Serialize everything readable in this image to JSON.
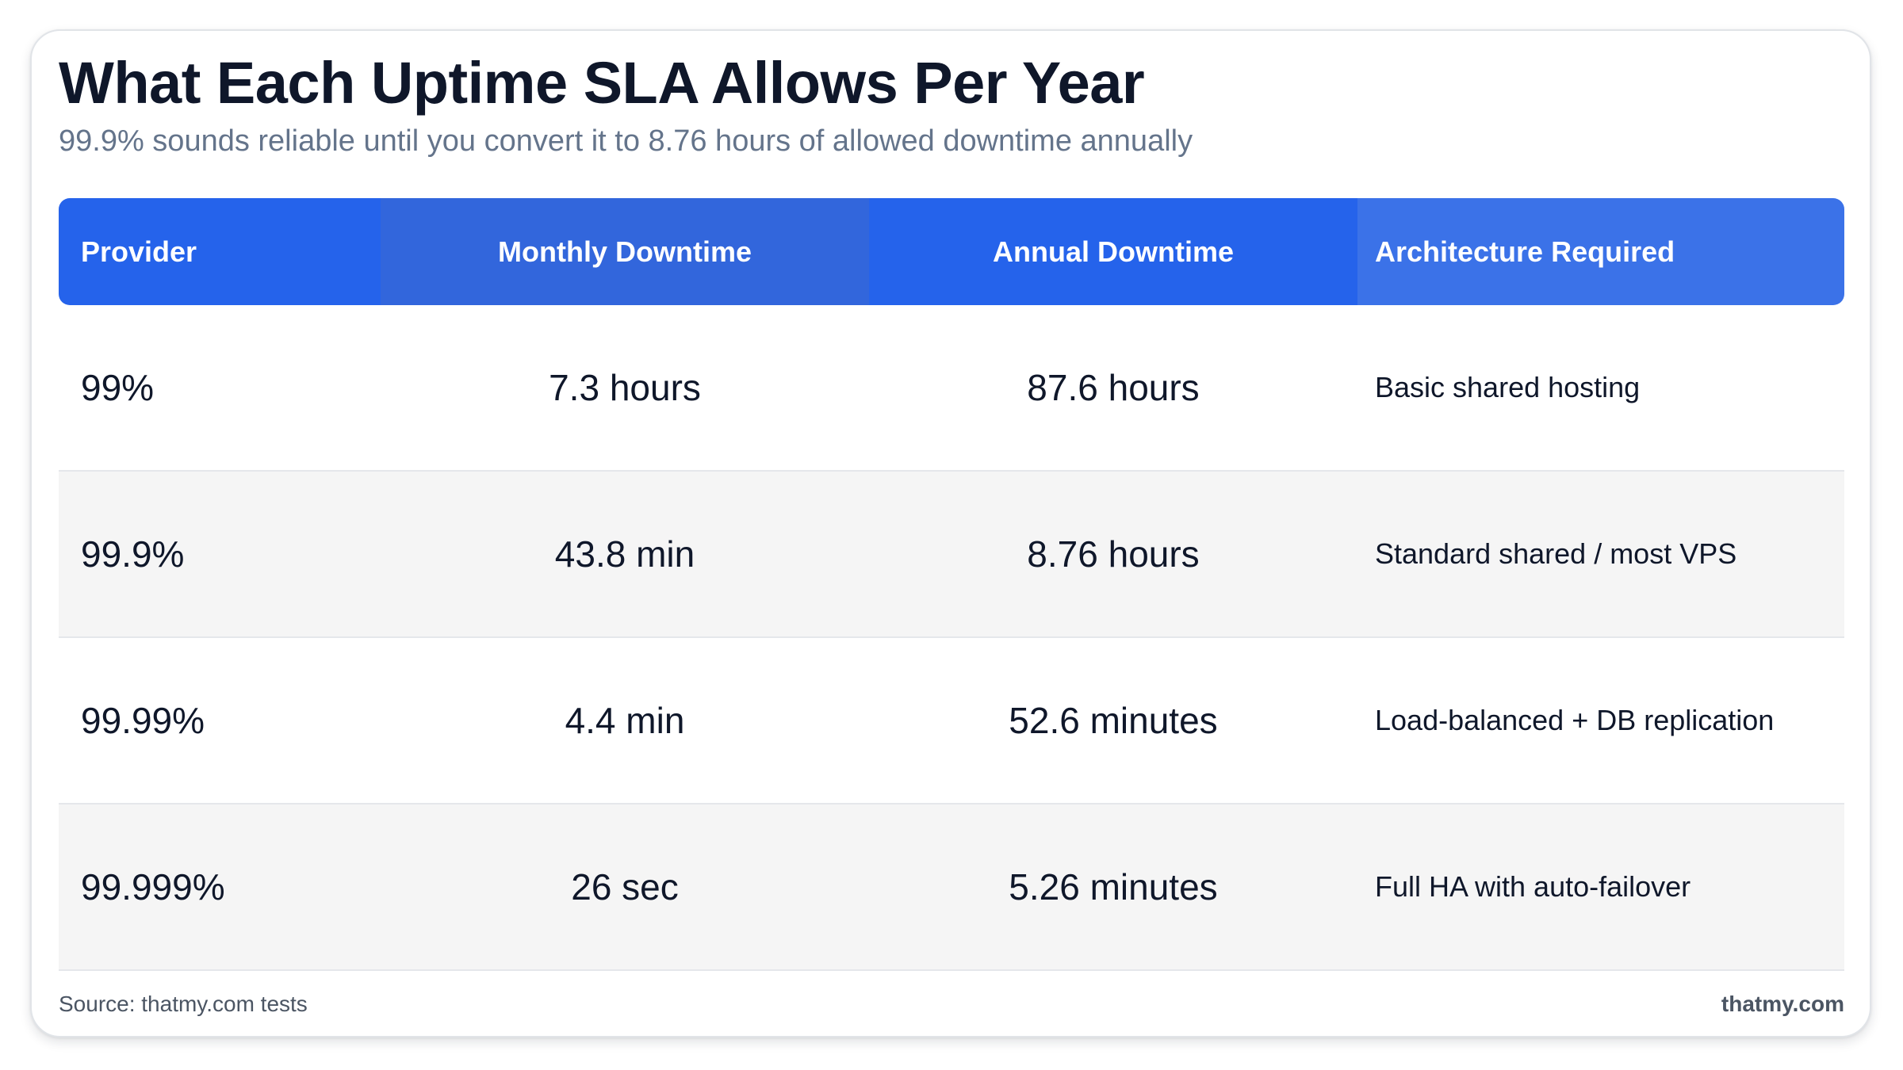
{
  "title": "What Each Uptime SLA Allows Per Year",
  "subtitle": "99.9% sounds reliable until you convert it to 8.76 hours of allowed downtime annually",
  "table": {
    "headers": [
      "Provider",
      "Monthly Downtime",
      "Annual Downtime",
      "Architecture Required"
    ],
    "rows": [
      [
        "99%",
        "7.3 hours",
        "87.6 hours",
        "Basic shared hosting"
      ],
      [
        "99.9%",
        "43.8 min",
        "8.76 hours",
        "Standard shared / most VPS"
      ],
      [
        "99.99%",
        "4.4 min",
        "52.6 minutes",
        "Load-balanced + DB replication"
      ],
      [
        "99.999%",
        "26 sec",
        "5.26 minutes",
        "Full HA with auto-failover"
      ]
    ]
  },
  "footer": {
    "source": "Source: thatmy.com tests",
    "brand": "thatmy.com"
  },
  "colors": {
    "header_blue": "#2563eb",
    "text_dark": "#0f172a",
    "text_muted": "#64748b",
    "row_alt": "#f5f5f5"
  }
}
